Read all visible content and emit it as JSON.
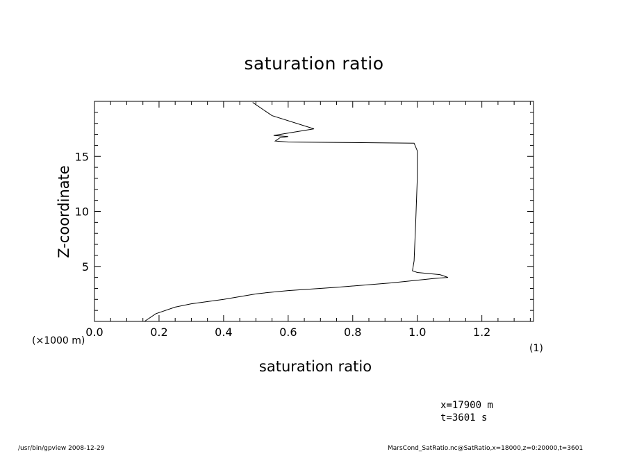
{
  "chart_data": {
    "type": "line",
    "title": "saturation ratio",
    "xlabel": "saturation ratio",
    "ylabel": "Z-coordinate",
    "y_unit": "(×1000 m)",
    "x_unit": "(1)",
    "xlim": [
      0.0,
      1.36
    ],
    "ylim": [
      0,
      20
    ],
    "xticks": [
      "0.0",
      "0.2",
      "0.4",
      "0.6",
      "0.8",
      "1.0",
      "1.2"
    ],
    "yticks": [
      "5",
      "10",
      "15"
    ],
    "grid": false,
    "series": [
      {
        "x": [
          0.155,
          0.19,
          0.25,
          0.3,
          0.4,
          0.5,
          0.53,
          0.6,
          0.75,
          0.92,
          1.05,
          1.095,
          1.07,
          1.0,
          0.985,
          0.99,
          0.995,
          1.0,
          1.0,
          0.99,
          0.6,
          0.56,
          0.575,
          0.6,
          0.555,
          0.68,
          0.55,
          0.49
        ],
        "y": [
          0.0,
          0.7,
          1.3,
          1.6,
          2.0,
          2.5,
          2.6,
          2.8,
          3.1,
          3.5,
          3.9,
          4.0,
          4.25,
          4.45,
          4.6,
          5.5,
          9.0,
          13.0,
          15.5,
          16.2,
          16.3,
          16.4,
          16.7,
          16.8,
          16.9,
          17.5,
          18.7,
          19.9
        ]
      }
    ]
  },
  "annotations": {
    "position": "x=17900  m",
    "time": "t=3601  s"
  },
  "footer": {
    "left": "/usr/bin/gpview   2008-12-29",
    "right": "MarsCond_SatRatio.nc@SatRatio,x=18000,z=0:20000,t=3601"
  }
}
